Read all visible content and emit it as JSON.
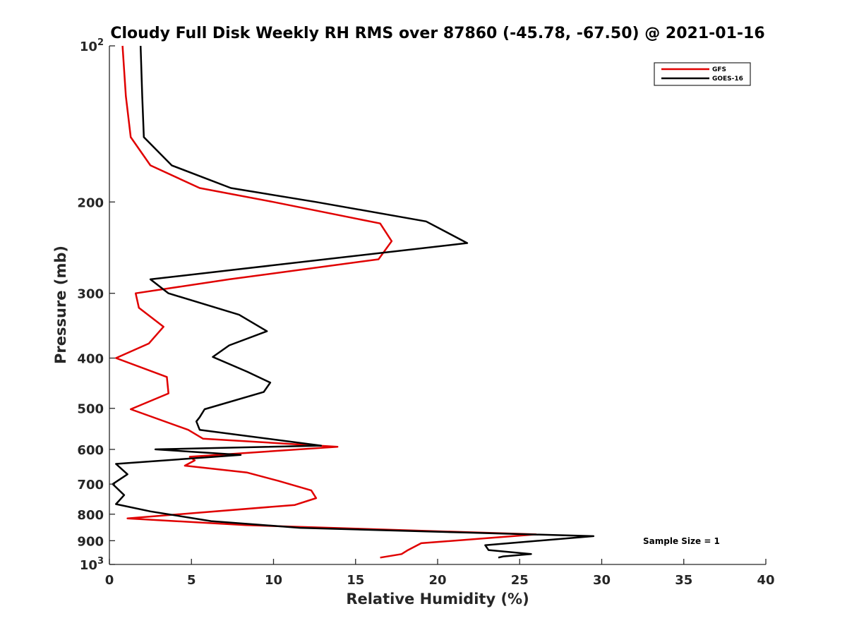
{
  "chart_data": {
    "type": "line",
    "title": "Cloudy Full Disk Weekly RH RMS over 87860 (-45.78, -67.50) @ 2021-01-16",
    "xlabel": "Relative Humidity (%)",
    "ylabel": "Pressure (mb)",
    "xlim": [
      0,
      40
    ],
    "ylim": [
      100,
      1000
    ],
    "y_scale": "log",
    "y_reversed": true,
    "grid": false,
    "legend_position": "top-right",
    "x_ticks": [
      {
        "value": 0,
        "label": "0"
      },
      {
        "value": 5,
        "label": "5"
      },
      {
        "value": 10,
        "label": "10"
      },
      {
        "value": 15,
        "label": "15"
      },
      {
        "value": 20,
        "label": "20"
      },
      {
        "value": 25,
        "label": "25"
      },
      {
        "value": 30,
        "label": "30"
      },
      {
        "value": 35,
        "label": "35"
      },
      {
        "value": 40,
        "label": "40"
      }
    ],
    "y_ticks": [
      {
        "value": 100,
        "label": "10",
        "exp": "2"
      },
      {
        "value": 200,
        "label": "200"
      },
      {
        "value": 300,
        "label": "300"
      },
      {
        "value": 400,
        "label": "400"
      },
      {
        "value": 500,
        "label": "500"
      },
      {
        "value": 600,
        "label": "600"
      },
      {
        "value": 700,
        "label": "700"
      },
      {
        "value": 800,
        "label": "800"
      },
      {
        "value": 900,
        "label": "900"
      },
      {
        "value": 1000,
        "label": "10",
        "exp": "3"
      }
    ],
    "series": [
      {
        "name": "GFS",
        "color": "#e00000",
        "points": [
          [
            0.8,
            100
          ],
          [
            1.0,
            125
          ],
          [
            1.3,
            150
          ],
          [
            2.5,
            170
          ],
          [
            5.5,
            188
          ],
          [
            10.0,
            200
          ],
          [
            16.5,
            220
          ],
          [
            17.2,
            238
          ],
          [
            16.4,
            258
          ],
          [
            7.3,
            282
          ],
          [
            1.6,
            300
          ],
          [
            1.8,
            320
          ],
          [
            3.3,
            348
          ],
          [
            2.4,
            375
          ],
          [
            0.4,
            400
          ],
          [
            3.5,
            435
          ],
          [
            3.6,
            468
          ],
          [
            1.3,
            502
          ],
          [
            4.8,
            550
          ],
          [
            5.7,
            572
          ],
          [
            13.9,
            593
          ],
          [
            4.9,
            620
          ],
          [
            5.2,
            630
          ],
          [
            4.6,
            645
          ],
          [
            8.4,
            665
          ],
          [
            10.3,
            690
          ],
          [
            12.3,
            720
          ],
          [
            12.6,
            745
          ],
          [
            11.3,
            768
          ],
          [
            1.1,
            815
          ],
          [
            8.3,
            840
          ],
          [
            26.0,
            875
          ],
          [
            19.0,
            910
          ],
          [
            18.2,
            938
          ],
          [
            17.8,
            955
          ],
          [
            16.5,
            970
          ]
        ]
      },
      {
        "name": "GOES-16",
        "color": "#000000",
        "points": [
          [
            1.9,
            100
          ],
          [
            2.0,
            125
          ],
          [
            2.1,
            150
          ],
          [
            3.8,
            170
          ],
          [
            7.4,
            188
          ],
          [
            12.6,
            200
          ],
          [
            19.3,
            218
          ],
          [
            21.8,
            240
          ],
          [
            2.5,
            282
          ],
          [
            3.6,
            300
          ],
          [
            7.9,
            330
          ],
          [
            9.6,
            355
          ],
          [
            7.3,
            378
          ],
          [
            6.3,
            398
          ],
          [
            8.4,
            425
          ],
          [
            9.8,
            446
          ],
          [
            9.4,
            465
          ],
          [
            5.8,
            502
          ],
          [
            5.5,
            520
          ],
          [
            5.3,
            530
          ],
          [
            5.5,
            550
          ],
          [
            12.9,
            590
          ],
          [
            2.8,
            600
          ],
          [
            8.0,
            615
          ],
          [
            0.4,
            640
          ],
          [
            1.1,
            670
          ],
          [
            0.2,
            700
          ],
          [
            0.9,
            735
          ],
          [
            0.4,
            765
          ],
          [
            2.5,
            790
          ],
          [
            6.2,
            825
          ],
          [
            11.6,
            850
          ],
          [
            21.7,
            868
          ],
          [
            29.5,
            882
          ],
          [
            22.9,
            918
          ],
          [
            23.1,
            938
          ],
          [
            25.7,
            955
          ],
          [
            24.0,
            965
          ],
          [
            23.7,
            970
          ]
        ]
      }
    ],
    "annotation": "Sample Size = 1"
  }
}
